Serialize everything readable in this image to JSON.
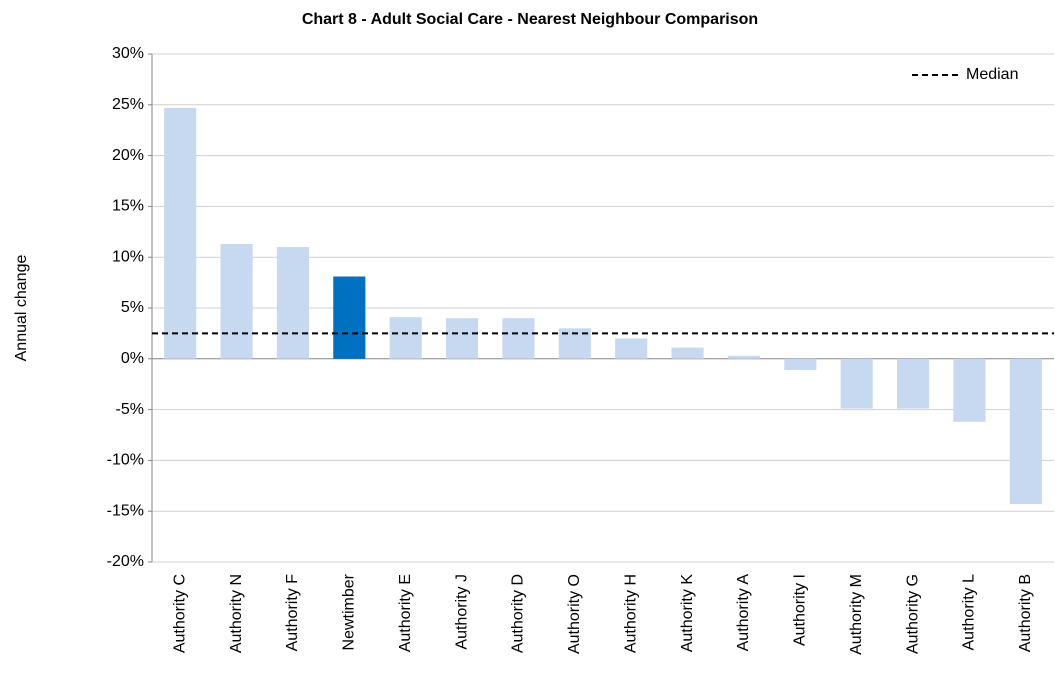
{
  "chart_data": {
    "type": "bar",
    "title": "Chart 8 - Adult Social Care - Nearest Neighbour Comparison",
    "y_label": "Annual change",
    "categories": [
      "Authority C",
      "Authority N",
      "Authority F",
      "Newtimber",
      "Authority E",
      "Authority J",
      "Authority D",
      "Authority O",
      "Authority H",
      "Authority K",
      "Authority A",
      "Authority I",
      "Authority M",
      "Authority G",
      "Authority L",
      "Authority B"
    ],
    "values": [
      24.7,
      11.3,
      11.0,
      8.1,
      4.1,
      4.0,
      4.0,
      3.0,
      2.0,
      1.1,
      0.3,
      -1.1,
      -4.9,
      -4.9,
      -6.2,
      -14.3
    ],
    "colors": [
      "#c6d9f1",
      "#c6d9f1",
      "#c6d9f1",
      "#0070c0",
      "#c6d9f1",
      "#c6d9f1",
      "#c6d9f1",
      "#c6d9f1",
      "#c6d9f1",
      "#c6d9f1",
      "#c6d9f1",
      "#c6d9f1",
      "#c6d9f1",
      "#c6d9f1",
      "#c6d9f1",
      "#c6d9f1"
    ],
    "median": {
      "name": "Median",
      "value": 2.5,
      "color": "#000000"
    },
    "legend": "upper right",
    "ylim": [
      -20,
      30
    ],
    "yticks": [
      {
        "value": -20,
        "label": "-20%"
      },
      {
        "value": -15,
        "label": "-15%"
      },
      {
        "value": -10,
        "label": "-10%"
      },
      {
        "value": -5,
        "label": "-5%"
      },
      {
        "value": 0,
        "label": "0%"
      },
      {
        "value": 5,
        "label": "5%"
      },
      {
        "value": 10,
        "label": "10%"
      },
      {
        "value": 15,
        "label": "15%"
      },
      {
        "value": 20,
        "label": "20%"
      },
      {
        "value": 25,
        "label": "25%"
      },
      {
        "value": 30,
        "label": "30%"
      }
    ],
    "grid": true
  }
}
